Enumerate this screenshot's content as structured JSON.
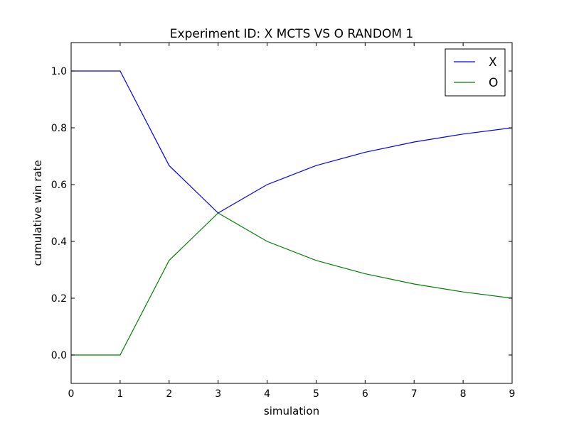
{
  "chart_data": {
    "type": "line",
    "title": "Experiment ID: X MCTS VS O RANDOM 1",
    "xlabel": "simulation",
    "ylabel": "cumulative win rate",
    "xlim": [
      0,
      9
    ],
    "ylim": [
      -0.1,
      1.1
    ],
    "x_ticks": [
      "0",
      "1",
      "2",
      "3",
      "4",
      "5",
      "6",
      "7",
      "8",
      "9"
    ],
    "y_ticks": [
      "0.0",
      "0.2",
      "0.4",
      "0.6",
      "0.8",
      "1.0"
    ],
    "grid": false,
    "legend_position": "top-right",
    "x": [
      0,
      1,
      2,
      3,
      4,
      5,
      6,
      7,
      8,
      9
    ],
    "series": [
      {
        "name": "X",
        "color": "#0000ff",
        "values": [
          1.0,
          1.0,
          0.667,
          0.5,
          0.6,
          0.667,
          0.714,
          0.75,
          0.778,
          0.8
        ]
      },
      {
        "name": "O",
        "color": "#008000",
        "values": [
          0.0,
          0.0,
          0.333,
          0.5,
          0.4,
          0.333,
          0.286,
          0.25,
          0.222,
          0.2
        ]
      }
    ]
  }
}
